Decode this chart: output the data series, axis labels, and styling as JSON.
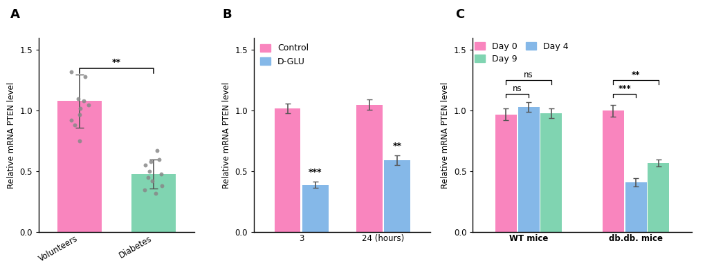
{
  "panel_A": {
    "categories": [
      "Volunteers",
      "Diabetes"
    ],
    "values": [
      1.08,
      0.48
    ],
    "errors": [
      0.22,
      0.12
    ],
    "colors": [
      "#F985BE",
      "#80D4B1"
    ],
    "scatter_volunteers": [
      1.32,
      1.28,
      1.1,
      1.08,
      1.05,
      1.02,
      0.97,
      0.92,
      0.88,
      0.75
    ],
    "scatter_diabetes": [
      0.67,
      0.6,
      0.58,
      0.55,
      0.5,
      0.48,
      0.45,
      0.42,
      0.38,
      0.35,
      0.32
    ],
    "ylabel": "Relative mRNA PTEN level",
    "ylim": [
      0,
      1.6
    ],
    "yticks": [
      0.0,
      0.5,
      1.0,
      1.5
    ],
    "sig_label": "**",
    "panel_label": "A"
  },
  "panel_B": {
    "group_labels": [
      "3",
      "24 (hours)"
    ],
    "bar_labels": [
      "Control",
      "D-GLU"
    ],
    "values": [
      [
        1.02,
        0.39
      ],
      [
        1.05,
        0.59
      ]
    ],
    "errors": [
      [
        0.04,
        0.025
      ],
      [
        0.04,
        0.04
      ]
    ],
    "colors": [
      "#F985BE",
      "#85B8E8"
    ],
    "ylabel": "Relative mRNA PTEN level",
    "ylim": [
      0,
      1.6
    ],
    "yticks": [
      0.0,
      0.5,
      1.0,
      1.5
    ],
    "sig_labels": [
      "***",
      "**"
    ],
    "panel_label": "B"
  },
  "panel_C": {
    "group_labels": [
      "WT mice",
      "db.db. mice"
    ],
    "bar_labels": [
      "Day 0",
      "Day 4",
      "Day 9"
    ],
    "values": [
      [
        0.97,
        1.03,
        0.98
      ],
      [
        1.0,
        0.41,
        0.57
      ]
    ],
    "errors": [
      [
        0.05,
        0.04,
        0.04
      ],
      [
        0.05,
        0.035,
        0.03
      ]
    ],
    "colors": [
      "#F985BE",
      "#85B8E8",
      "#80D4B1"
    ],
    "ylabel": "Relative mRNA PTEN level",
    "ylim": [
      0,
      1.6
    ],
    "yticks": [
      0.0,
      0.5,
      1.0,
      1.5
    ],
    "sig_labels_wt": [
      "ns",
      "ns"
    ],
    "sig_labels_db": [
      "***",
      "**"
    ],
    "panel_label": "C"
  },
  "background_color": "#FFFFFF",
  "scatter_color": "#888888",
  "scatter_size": 18,
  "font_size": 8.5,
  "axis_label_font_size": 8.5,
  "panel_label_font_size": 13,
  "sig_font_size": 9
}
